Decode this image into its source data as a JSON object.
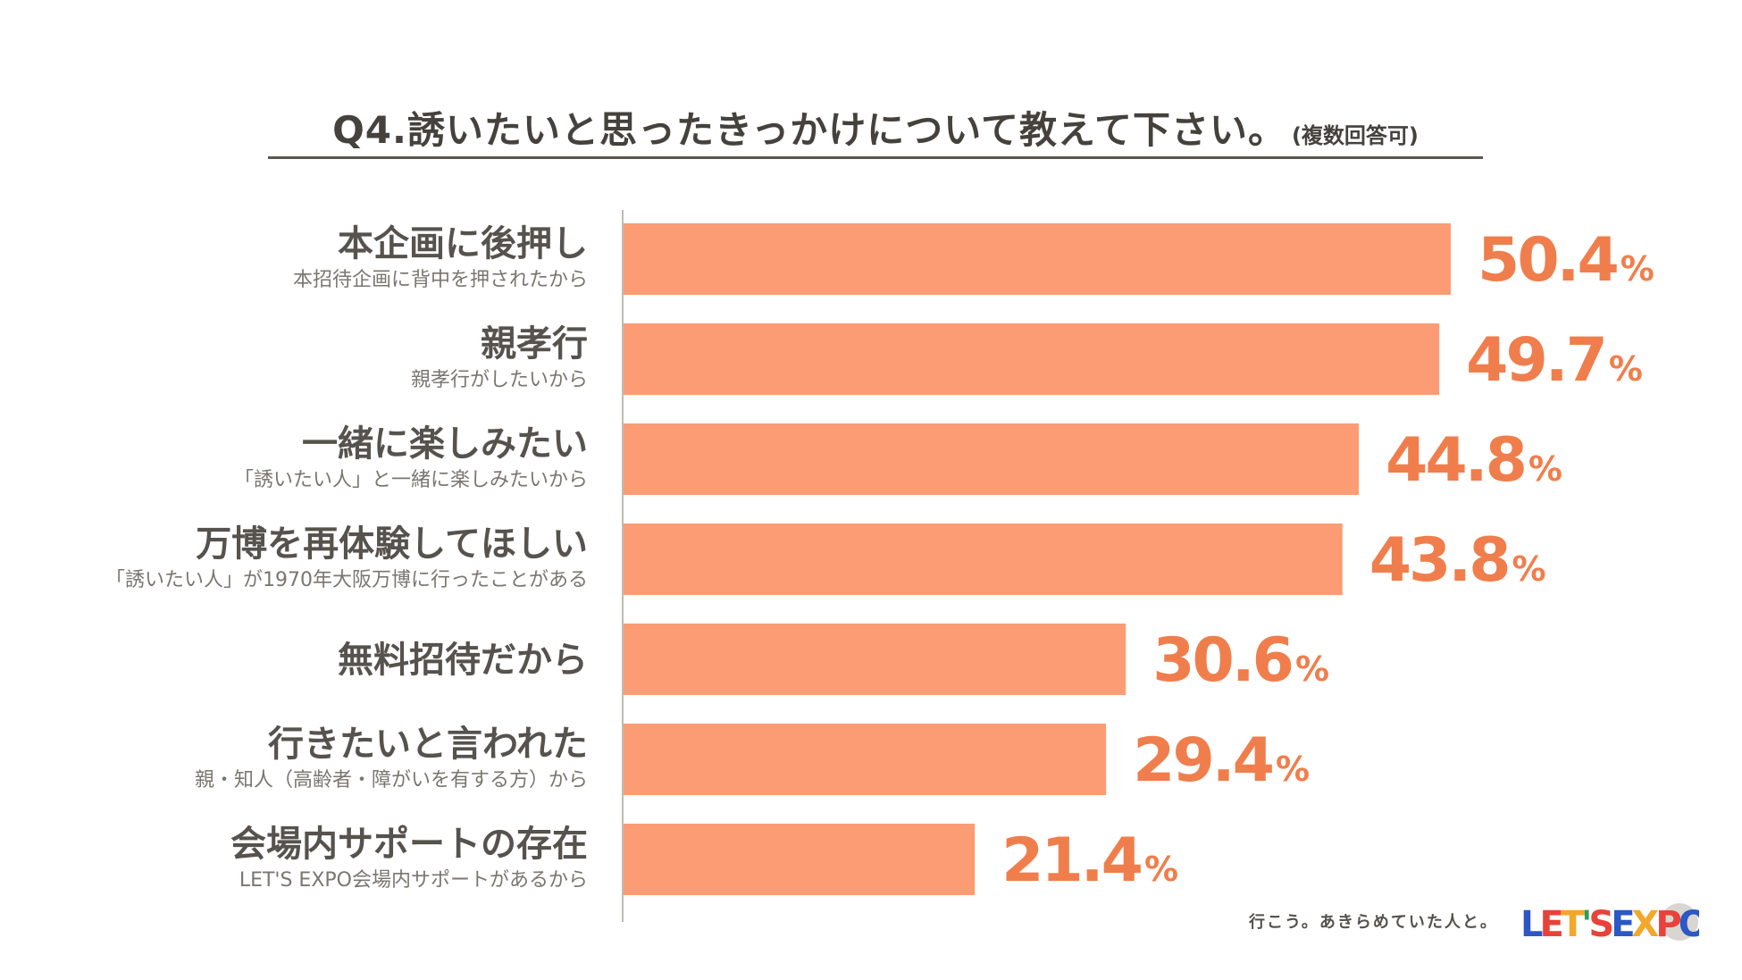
{
  "title": {
    "main": "Q4.誘いたいと思ったきっかけについて教えて下さい。",
    "sub": "(複数回答可)"
  },
  "chart_data": {
    "type": "bar",
    "orientation": "horizontal",
    "value_suffix": "%",
    "xlim": [
      0,
      50.4
    ],
    "categories": [
      {
        "label": "本企画に後押し",
        "sublabel": "本招待企画に背中を押されたから",
        "value": 50.4
      },
      {
        "label": "親孝行",
        "sublabel": "親孝行がしたいから",
        "value": 49.7
      },
      {
        "label": "一緒に楽しみたい",
        "sublabel": "「誘いたい人」と一緒に楽しみたいから",
        "value": 44.8
      },
      {
        "label": "万博を再体験してほしい",
        "sublabel": "「誘いたい人」が1970年大阪万博に行ったことがある",
        "value": 43.8
      },
      {
        "label": "無料招待だから",
        "sublabel": "",
        "value": 30.6
      },
      {
        "label": "行きたいと言われた",
        "sublabel": "親・知人（高齢者・障がいを有する方）から",
        "value": 29.4
      },
      {
        "label": "会場内サポートの存在",
        "sublabel": "LET'S EXPO会場内サポートがあるから",
        "value": 21.4
      }
    ]
  },
  "colors": {
    "bar": "#fb9c74",
    "value_text": "#f07e4c",
    "label_text": "#56524d",
    "axis": "#bdbab6"
  },
  "footer": {
    "tagline": "行こう。あきらめていた人と。",
    "logo_text": "LET'S EXPO"
  }
}
